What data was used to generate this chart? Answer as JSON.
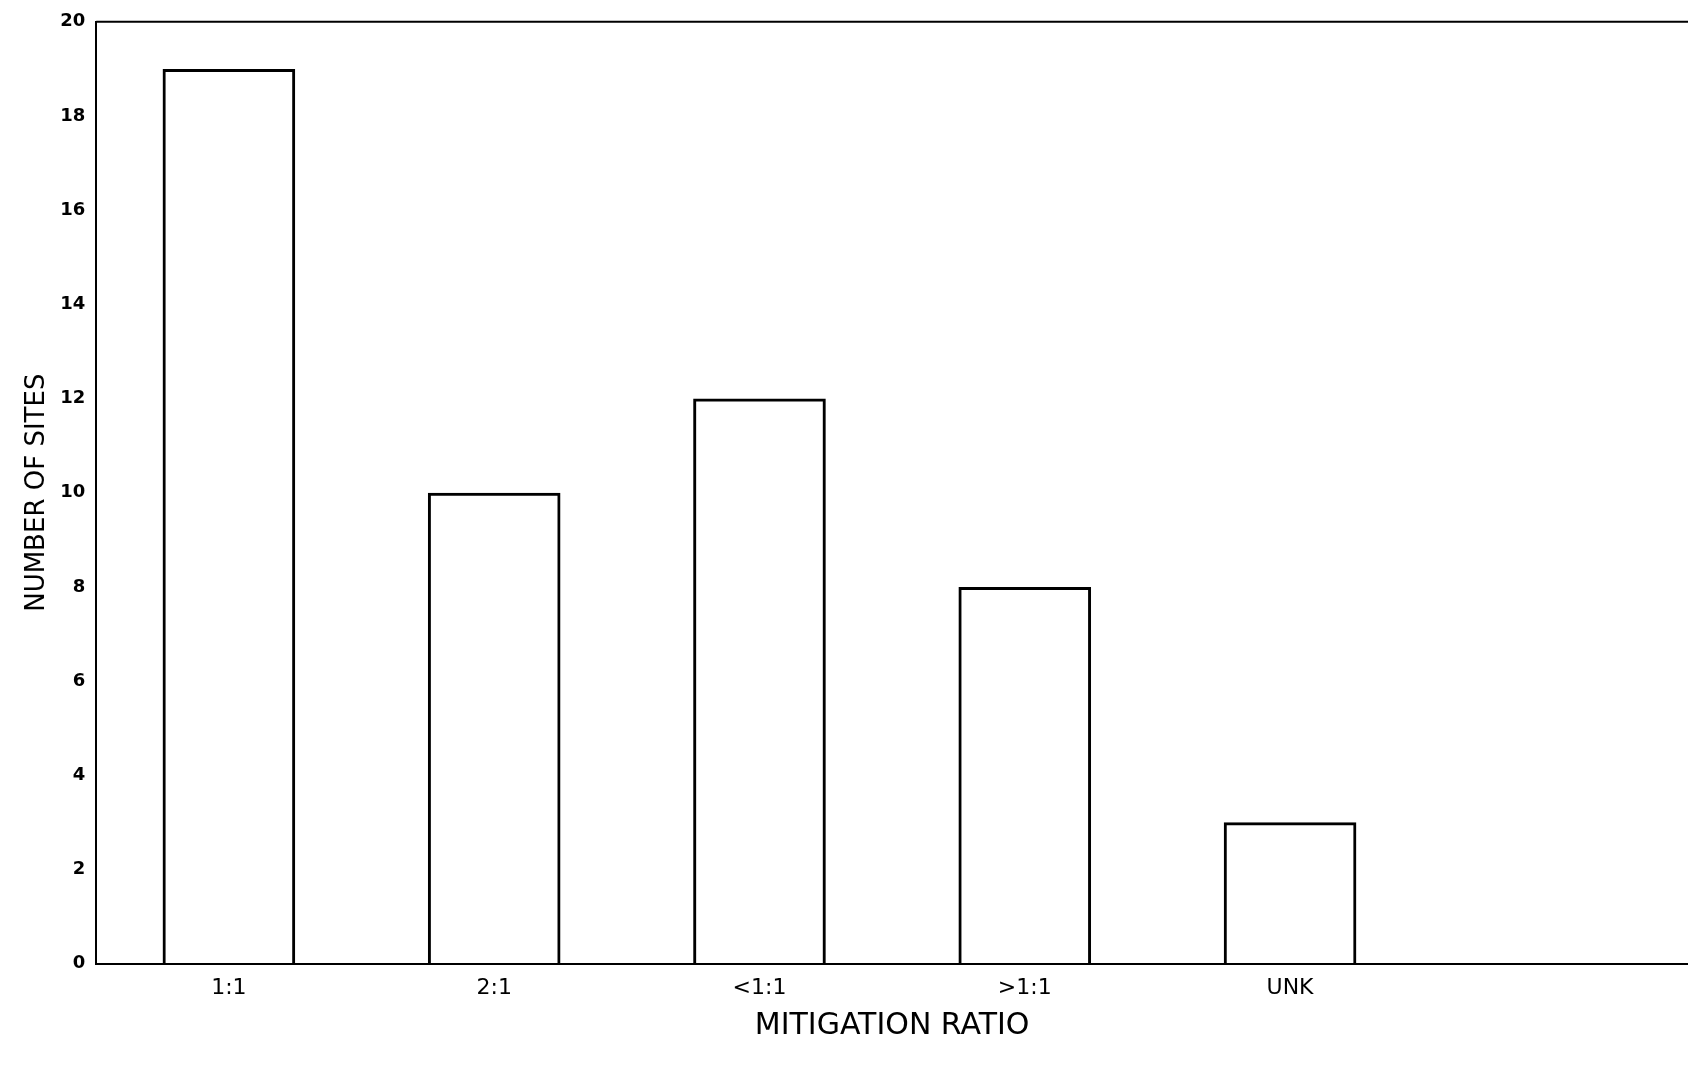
{
  "chart_data": {
    "type": "bar",
    "xlabel": "MITIGATION RATIO",
    "ylabel": "NUMBER OF SITES",
    "categories": [
      "1:1",
      "2:1",
      "<1:1",
      ">1:1",
      "UNK"
    ],
    "values": [
      19,
      10,
      12,
      8,
      3
    ],
    "color": "#000000",
    "ylim": [
      0,
      20
    ],
    "yticks": [
      0,
      2,
      4,
      6,
      8,
      10,
      12,
      14,
      16,
      18,
      20
    ],
    "grid": false,
    "legend": false
  }
}
